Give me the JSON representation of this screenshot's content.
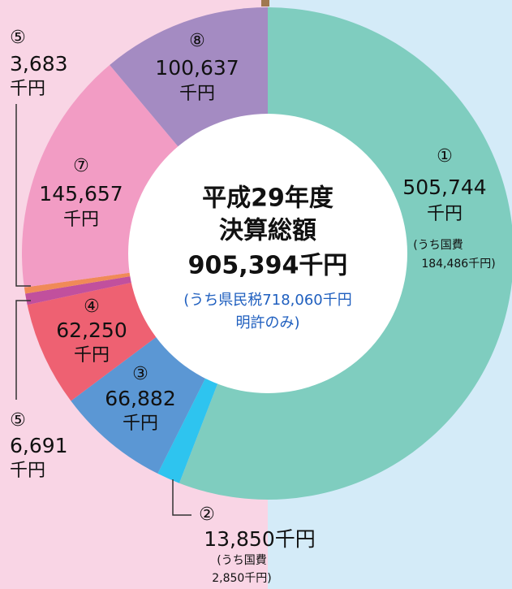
{
  "chart_data": {
    "type": "donut",
    "center_text": [
      "平成29年度",
      "決算総額",
      "905,394千円"
    ],
    "center_note": [
      "(うち県民税718,060千円",
      "明許のみ)"
    ],
    "categories": [
      "①",
      "②",
      "③",
      "④",
      "⑤",
      "⑤",
      "⑦",
      "⑧"
    ],
    "values": [
      505744,
      13850,
      66882,
      62250,
      6691,
      3683,
      145657,
      100637
    ],
    "value_labels": [
      "505,744",
      "13,850千円",
      "66,882",
      "62,250",
      "6,691",
      "3,683",
      "145,657",
      "100,637"
    ],
    "units": [
      "千円",
      null,
      "千円",
      "千円",
      "千円",
      "千円",
      "千円",
      "千円"
    ],
    "notes": [
      [
        "(うち国費",
        "184,486千円)"
      ],
      [
        "(うち国費",
        "2,850千円)"
      ],
      null,
      null,
      null,
      null,
      null,
      null
    ],
    "colors": [
      "#7fcdbf",
      "#2ec4ef",
      "#5b97d4",
      "#ee6172",
      "#c1509d",
      "#f08a58",
      "#f29cc4",
      "#a48bc2"
    ]
  }
}
